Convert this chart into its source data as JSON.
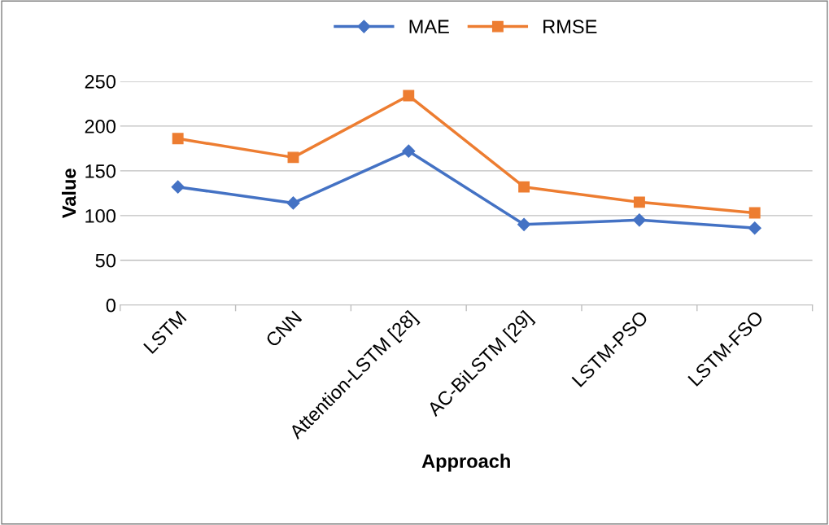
{
  "chart_data": {
    "type": "line",
    "xlabel": "Approach",
    "ylabel": "Value",
    "categories": [
      "LSTM",
      "CNN",
      "Attention-LSTM [28]",
      "AC-BiLSTM [29]",
      "LSTM-PSO",
      "LSTM-FSO"
    ],
    "series": [
      {
        "name": "MAE",
        "color": "#4472c4",
        "marker": "diamond",
        "values": [
          132,
          114,
          172,
          90,
          95,
          86
        ]
      },
      {
        "name": "RMSE",
        "color": "#ed7d31",
        "marker": "square",
        "values": [
          186,
          165,
          234,
          132,
          115,
          103
        ]
      }
    ],
    "ylim": [
      0,
      250
    ],
    "yticks": [
      0,
      50,
      100,
      150,
      200,
      250
    ],
    "grid": "y",
    "legend": "top",
    "line_style": "solid"
  }
}
